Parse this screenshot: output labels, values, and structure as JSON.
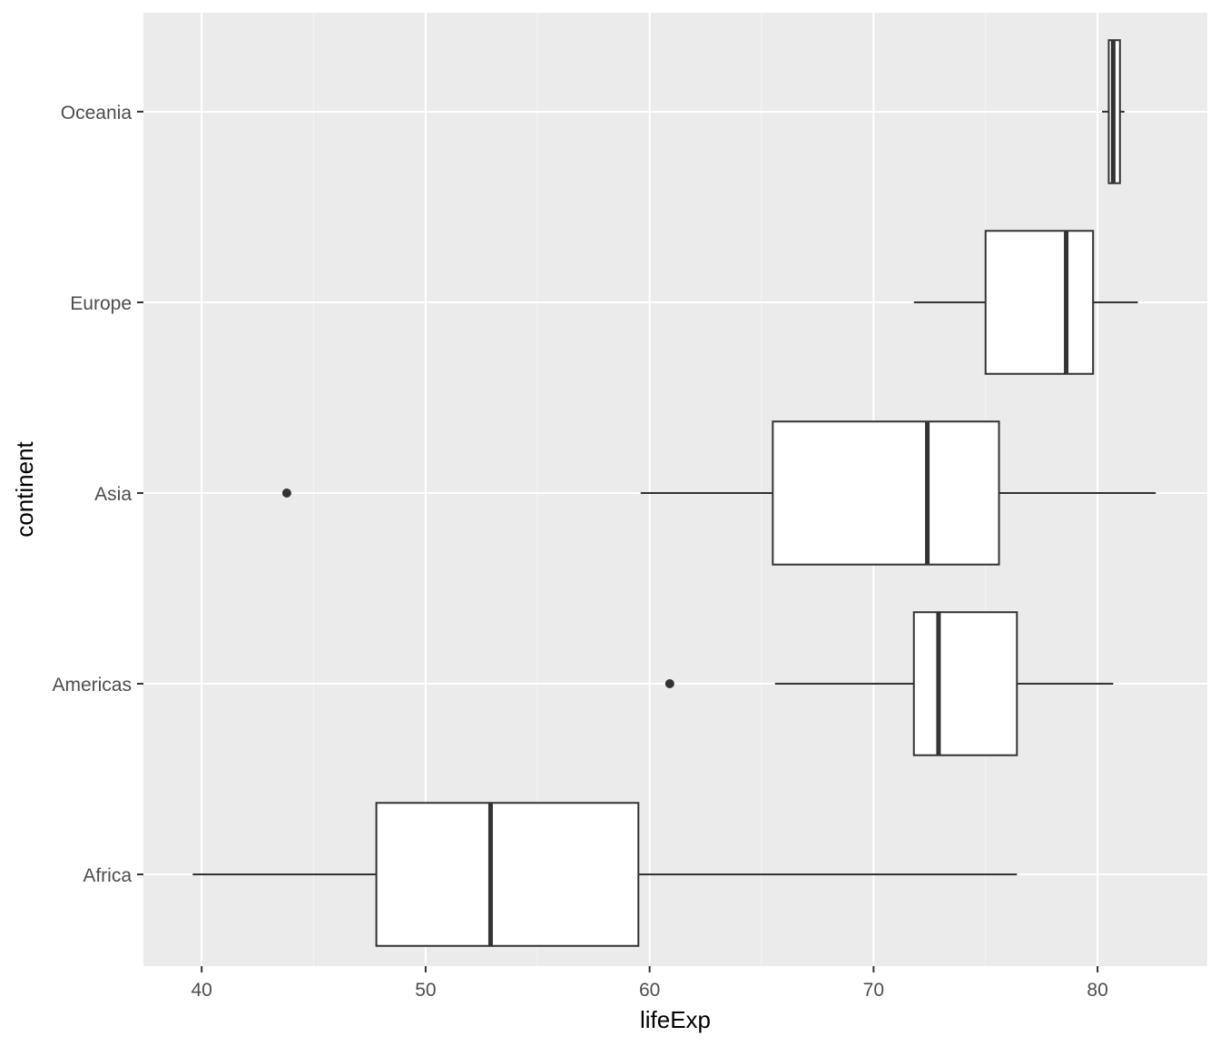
{
  "chart_data": {
    "type": "boxplot",
    "orientation": "horizontal",
    "xlabel": "lifeExp",
    "ylabel": "continent",
    "xlim": [
      37.4,
      84.9
    ],
    "x_ticks": [
      40,
      50,
      60,
      70,
      80
    ],
    "x_tick_labels": [
      "40",
      "50",
      "60",
      "70",
      "80"
    ],
    "grid": true,
    "categories": [
      "Africa",
      "Americas",
      "Asia",
      "Europe",
      "Oceania"
    ],
    "boxes": [
      {
        "category": "Africa",
        "whisker_low": 39.6,
        "q1": 47.8,
        "median": 52.9,
        "q3": 59.5,
        "whisker_high": 76.4,
        "outliers": []
      },
      {
        "category": "Americas",
        "whisker_low": 65.6,
        "q1": 71.8,
        "median": 72.9,
        "q3": 76.4,
        "whisker_high": 80.7,
        "outliers": [
          60.9
        ]
      },
      {
        "category": "Asia",
        "whisker_low": 59.6,
        "q1": 65.5,
        "median": 72.4,
        "q3": 75.6,
        "whisker_high": 82.6,
        "outliers": [
          43.8
        ]
      },
      {
        "category": "Europe",
        "whisker_low": 71.8,
        "q1": 75.0,
        "median": 78.6,
        "q3": 79.8,
        "whisker_high": 81.8,
        "outliers": []
      },
      {
        "category": "Oceania",
        "whisker_low": 80.2,
        "q1": 80.5,
        "median": 80.7,
        "q3": 81.0,
        "whisker_high": 81.2,
        "outliers": []
      }
    ],
    "colors": {
      "panel_background": "#ebebeb",
      "grid_major": "#ffffff",
      "grid_minor": "#f4f4f4",
      "box_fill": "#ffffff",
      "box_stroke": "#333333",
      "tick_text": "#4d4d4d"
    }
  }
}
